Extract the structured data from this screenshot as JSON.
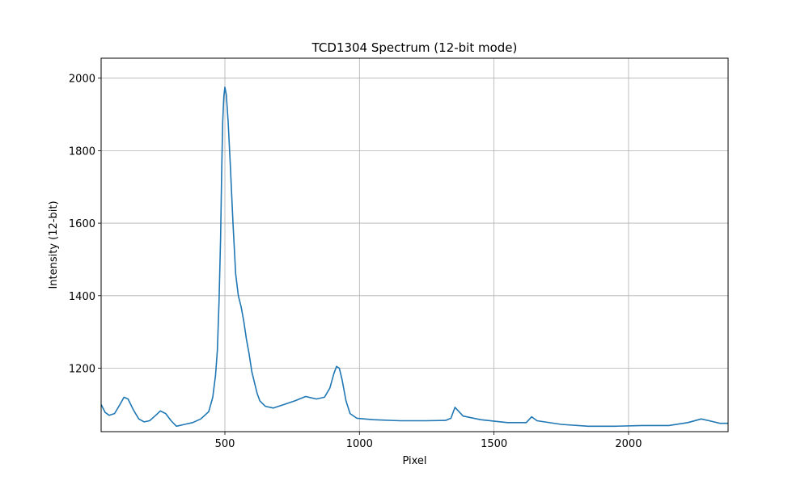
{
  "chart_data": {
    "type": "line",
    "title": "TCD1304 Spectrum (12-bit mode)",
    "xlabel": "Pixel",
    "ylabel": "Intensity (12-bit)",
    "xlim": [
      40,
      2370
    ],
    "ylim": [
      1025,
      2055
    ],
    "x_ticks": [
      500,
      1000,
      1500,
      2000
    ],
    "x_tick_labels": [
      "500",
      "1000",
      "1500",
      "2000"
    ],
    "y_ticks": [
      1200,
      1400,
      1600,
      1800,
      2000
    ],
    "y_tick_labels": [
      "1200",
      "1400",
      "1600",
      "1800",
      "2000"
    ],
    "grid": true,
    "series": [
      {
        "color": "#1f77b4",
        "points": [
          [
            40,
            1100
          ],
          [
            55,
            1078
          ],
          [
            70,
            1070
          ],
          [
            90,
            1075
          ],
          [
            110,
            1100
          ],
          [
            125,
            1120
          ],
          [
            140,
            1115
          ],
          [
            160,
            1085
          ],
          [
            180,
            1060
          ],
          [
            200,
            1052
          ],
          [
            220,
            1055
          ],
          [
            240,
            1068
          ],
          [
            260,
            1082
          ],
          [
            280,
            1075
          ],
          [
            300,
            1055
          ],
          [
            320,
            1040
          ],
          [
            350,
            1045
          ],
          [
            380,
            1050
          ],
          [
            410,
            1060
          ],
          [
            440,
            1080
          ],
          [
            455,
            1120
          ],
          [
            465,
            1180
          ],
          [
            472,
            1250
          ],
          [
            478,
            1380
          ],
          [
            484,
            1560
          ],
          [
            488,
            1740
          ],
          [
            492,
            1880
          ],
          [
            496,
            1950
          ],
          [
            500,
            1975
          ],
          [
            505,
            1955
          ],
          [
            512,
            1880
          ],
          [
            520,
            1760
          ],
          [
            530,
            1600
          ],
          [
            540,
            1460
          ],
          [
            550,
            1400
          ],
          [
            560,
            1370
          ],
          [
            570,
            1330
          ],
          [
            580,
            1280
          ],
          [
            590,
            1240
          ],
          [
            600,
            1190
          ],
          [
            610,
            1160
          ],
          [
            620,
            1130
          ],
          [
            630,
            1110
          ],
          [
            650,
            1095
          ],
          [
            680,
            1090
          ],
          [
            720,
            1100
          ],
          [
            760,
            1110
          ],
          [
            800,
            1122
          ],
          [
            840,
            1115
          ],
          [
            870,
            1120
          ],
          [
            890,
            1145
          ],
          [
            905,
            1185
          ],
          [
            915,
            1205
          ],
          [
            925,
            1200
          ],
          [
            935,
            1170
          ],
          [
            950,
            1110
          ],
          [
            965,
            1075
          ],
          [
            990,
            1062
          ],
          [
            1050,
            1058
          ],
          [
            1150,
            1055
          ],
          [
            1250,
            1055
          ],
          [
            1320,
            1056
          ],
          [
            1340,
            1062
          ],
          [
            1355,
            1092
          ],
          [
            1370,
            1080
          ],
          [
            1385,
            1068
          ],
          [
            1450,
            1058
          ],
          [
            1550,
            1050
          ],
          [
            1620,
            1050
          ],
          [
            1640,
            1066
          ],
          [
            1660,
            1055
          ],
          [
            1750,
            1045
          ],
          [
            1850,
            1040
          ],
          [
            1950,
            1040
          ],
          [
            2050,
            1042
          ],
          [
            2150,
            1042
          ],
          [
            2220,
            1050
          ],
          [
            2270,
            1060
          ],
          [
            2300,
            1055
          ],
          [
            2340,
            1048
          ],
          [
            2370,
            1048
          ]
        ]
      }
    ]
  }
}
